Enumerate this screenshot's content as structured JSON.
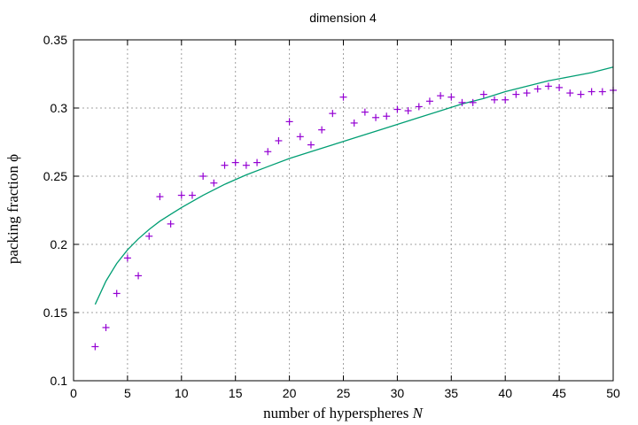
{
  "chart_data": {
    "type": "scatter",
    "title": "dimension 4",
    "xlabel_prefix": "number of hyperspheres ",
    "xlabel_var": "N",
    "ylabel_prefix": "packing fraction  ",
    "ylabel_var": "ϕ",
    "xlim": [
      0,
      50
    ],
    "ylim": [
      0.1,
      0.35
    ],
    "xticks": [
      0,
      5,
      10,
      15,
      20,
      25,
      30,
      35,
      40,
      45,
      50
    ],
    "yticks": [
      0.1,
      0.15,
      0.2,
      0.25,
      0.3,
      0.35
    ],
    "xtick_labels": [
      "0",
      "5",
      "10",
      "15",
      "20",
      "25",
      "30",
      "35",
      "40",
      "45",
      "50"
    ],
    "ytick_labels": [
      "0.1",
      "0.15",
      "0.2",
      "0.25",
      "0.3",
      "0.35"
    ],
    "grid": true,
    "legend": "none",
    "series": [
      {
        "kind": "points",
        "marker": "plus",
        "color": "#9400d3",
        "x": [
          2,
          3,
          4,
          5,
          6,
          7,
          8,
          9,
          10,
          11,
          12,
          13,
          14,
          15,
          16,
          17,
          18,
          19,
          20,
          21,
          22,
          23,
          24,
          25,
          26,
          27,
          28,
          29,
          30,
          31,
          32,
          33,
          34,
          35,
          36,
          37,
          38,
          39,
          40,
          41,
          42,
          43,
          44,
          45,
          46,
          47,
          48,
          49,
          50
        ],
        "y": [
          0.125,
          0.139,
          0.164,
          0.19,
          0.177,
          0.206,
          0.235,
          0.215,
          0.236,
          0.236,
          0.25,
          0.245,
          0.258,
          0.26,
          0.258,
          0.26,
          0.268,
          0.276,
          0.29,
          0.279,
          0.273,
          0.284,
          0.296,
          0.308,
          0.289,
          0.297,
          0.293,
          0.294,
          0.299,
          0.298,
          0.301,
          0.305,
          0.309,
          0.308,
          0.304,
          0.304,
          0.31,
          0.306,
          0.306,
          0.31,
          0.311,
          0.314,
          0.316,
          0.315,
          0.311,
          0.31,
          0.312,
          0.312,
          0.313
        ]
      },
      {
        "kind": "line",
        "color": "#009e73",
        "x": [
          2,
          3,
          4,
          5,
          6,
          7,
          8,
          9,
          10,
          12,
          14,
          16,
          18,
          20,
          22,
          24,
          26,
          28,
          30,
          32,
          34,
          36,
          38,
          40,
          42,
          44,
          46,
          48,
          50
        ],
        "y": [
          0.156,
          0.173,
          0.186,
          0.196,
          0.204,
          0.211,
          0.217,
          0.222,
          0.227,
          0.236,
          0.244,
          0.251,
          0.257,
          0.263,
          0.268,
          0.273,
          0.278,
          0.283,
          0.288,
          0.293,
          0.298,
          0.303,
          0.307,
          0.312,
          0.316,
          0.32,
          0.323,
          0.326,
          0.33
        ]
      }
    ]
  }
}
